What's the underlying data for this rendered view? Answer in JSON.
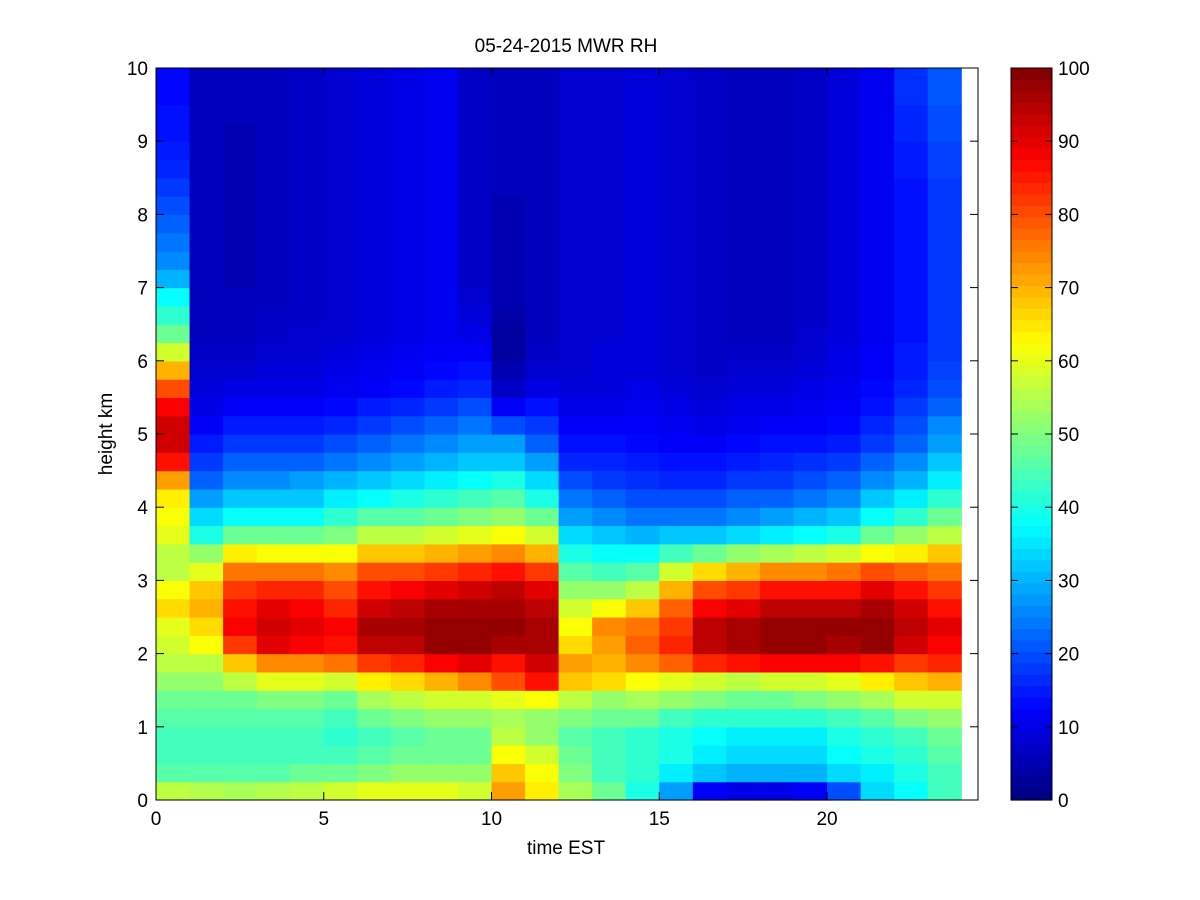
{
  "chart_data": {
    "type": "heatmap",
    "title": "05-24-2015 MWR RH",
    "xlabel": "time EST",
    "ylabel": "height km",
    "xlim": [
      0,
      24.5
    ],
    "ylim": [
      0,
      10
    ],
    "x_ticks": [
      0,
      5,
      10,
      15,
      20
    ],
    "y_ticks": [
      0,
      1,
      2,
      3,
      4,
      5,
      6,
      7,
      8,
      9,
      10
    ],
    "colorbar": {
      "min": 0,
      "max": 100,
      "ticks": [
        0,
        10,
        20,
        30,
        40,
        50,
        60,
        70,
        80,
        90,
        100
      ],
      "colormap": "jet"
    },
    "x": [
      0.5,
      1.5,
      2.5,
      3.5,
      4.5,
      5.5,
      6.5,
      7.5,
      8.5,
      9.5,
      10.5,
      11.5,
      12.5,
      13.5,
      14.5,
      15.5,
      16.5,
      17.5,
      18.5,
      19.5,
      20.5,
      21.5,
      22.5,
      23.5
    ],
    "heights": [
      0.0,
      0.25,
      0.5,
      0.75,
      1.0,
      1.25,
      1.5,
      1.75,
      2.0,
      2.25,
      2.5,
      2.75,
      3.0,
      3.25,
      3.5,
      3.75,
      4.0,
      4.25,
      4.5,
      4.75,
      5.0,
      5.25,
      5.5,
      5.75,
      6.0,
      6.25,
      6.5,
      6.75,
      7.0,
      7.25,
      7.5,
      7.75,
      8.0,
      8.25,
      8.5,
      8.75,
      9.0,
      9.25,
      9.5,
      9.75
    ],
    "z": [
      [
        56,
        46,
        44,
        44,
        46,
        48,
        52,
        56,
        58,
        60,
        66,
        62,
        56,
        56,
        60,
        62,
        64,
        72,
        86,
        92,
        92,
        88,
        80,
        70,
        58,
        48,
        42,
        38,
        30,
        26,
        24,
        22,
        20,
        18,
        16,
        15,
        14,
        14,
        13,
        13
      ],
      [
        55,
        46,
        44,
        44,
        46,
        48,
        52,
        56,
        62,
        66,
        70,
        68,
        60,
        52,
        40,
        34,
        28,
        22,
        18,
        15,
        12,
        10,
        9,
        8,
        7,
        6,
        6,
        6,
        6,
        6,
        6,
        6,
        6,
        6,
        6,
        6,
        6,
        6,
        6,
        6
      ],
      [
        54,
        46,
        44,
        44,
        46,
        48,
        56,
        68,
        82,
        88,
        86,
        82,
        76,
        64,
        48,
        38,
        32,
        26,
        22,
        18,
        15,
        12,
        10,
        8,
        7,
        6,
        6,
        6,
        5,
        5,
        5,
        5,
        5,
        5,
        5,
        5,
        5,
        6,
        6,
        6
      ],
      [
        55,
        46,
        44,
        44,
        46,
        50,
        60,
        74,
        90,
        92,
        90,
        84,
        76,
        62,
        48,
        38,
        32,
        26,
        22,
        18,
        15,
        12,
        10,
        9,
        8,
        7,
        7,
        6,
        6,
        6,
        6,
        6,
        6,
        6,
        6,
        6,
        6,
        6,
        6,
        6
      ],
      [
        56,
        48,
        44,
        44,
        46,
        50,
        60,
        74,
        88,
        90,
        88,
        84,
        76,
        62,
        48,
        38,
        32,
        28,
        22,
        18,
        15,
        12,
        10,
        9,
        8,
        8,
        7,
        7,
        7,
        7,
        7,
        7,
        7,
        7,
        7,
        7,
        7,
        7,
        7,
        7
      ],
      [
        58,
        48,
        44,
        42,
        44,
        48,
        58,
        76,
        86,
        88,
        84,
        80,
        74,
        62,
        50,
        42,
        36,
        30,
        24,
        20,
        16,
        13,
        11,
        10,
        9,
        8,
        8,
        8,
        8,
        8,
        8,
        8,
        8,
        8,
        8,
        8,
        8,
        8,
        8,
        8
      ],
      [
        60,
        50,
        46,
        44,
        48,
        54,
        64,
        82,
        94,
        96,
        92,
        86,
        80,
        68,
        56,
        46,
        38,
        32,
        26,
        22,
        18,
        15,
        12,
        11,
        10,
        9,
        9,
        9,
        9,
        9,
        9,
        9,
        9,
        9,
        9,
        9,
        9,
        9,
        9,
        9
      ],
      [
        60,
        52,
        48,
        46,
        50,
        56,
        66,
        84,
        94,
        96,
        94,
        88,
        80,
        68,
        56,
        46,
        40,
        34,
        28,
        24,
        20,
        16,
        13,
        12,
        11,
        10,
        10,
        10,
        10,
        10,
        10,
        10,
        10,
        10,
        10,
        10,
        10,
        10,
        10,
        10
      ],
      [
        60,
        52,
        48,
        48,
        52,
        58,
        70,
        88,
        98,
        98,
        96,
        90,
        82,
        70,
        58,
        48,
        42,
        36,
        30,
        26,
        22,
        18,
        15,
        13,
        12,
        11,
        11,
        11,
        11,
        11,
        11,
        11,
        11,
        11,
        11,
        11,
        11,
        11,
        11,
        11
      ],
      [
        58,
        52,
        48,
        48,
        52,
        58,
        74,
        90,
        98,
        98,
        96,
        92,
        84,
        72,
        60,
        50,
        44,
        38,
        32,
        28,
        24,
        20,
        16,
        14,
        12,
        10,
        9,
        8,
        7,
        7,
        7,
        7,
        7,
        7,
        7,
        7,
        7,
        7,
        7,
        7
      ],
      [
        72,
        68,
        62,
        56,
        54,
        60,
        80,
        86,
        96,
        98,
        96,
        94,
        86,
        74,
        62,
        52,
        46,
        40,
        32,
        28,
        20,
        12,
        7,
        5,
        3,
        3,
        4,
        5,
        5,
        5,
        5,
        5,
        5,
        6,
        6,
        6,
        6,
        6,
        6,
        6
      ],
      [
        64,
        62,
        58,
        52,
        52,
        62,
        86,
        92,
        96,
        96,
        94,
        90,
        82,
        70,
        58,
        48,
        40,
        34,
        28,
        22,
        18,
        14,
        10,
        8,
        7,
        6,
        6,
        6,
        6,
        6,
        6,
        6,
        6,
        6,
        6,
        6,
        6,
        6,
        6,
        6
      ],
      [
        54,
        50,
        48,
        46,
        50,
        56,
        68,
        72,
        66,
        62,
        58,
        52,
        46,
        40,
        34,
        28,
        24,
        20,
        16,
        14,
        12,
        10,
        9,
        8,
        8,
        8,
        8,
        8,
        8,
        8,
        8,
        8,
        8,
        8,
        8,
        8,
        8,
        8,
        8,
        8
      ],
      [
        48,
        44,
        44,
        44,
        48,
        52,
        66,
        70,
        72,
        74,
        62,
        52,
        44,
        38,
        32,
        26,
        22,
        18,
        16,
        14,
        12,
        10,
        9,
        9,
        9,
        8,
        8,
        8,
        8,
        8,
        8,
        8,
        8,
        8,
        8,
        8,
        8,
        8,
        8,
        8
      ],
      [
        40,
        42,
        42,
        42,
        48,
        54,
        62,
        74,
        78,
        76,
        68,
        56,
        46,
        38,
        30,
        24,
        20,
        17,
        15,
        13,
        12,
        11,
        10,
        9,
        9,
        9,
        9,
        9,
        9,
        9,
        9,
        9,
        9,
        9,
        9,
        9,
        9,
        9,
        9,
        9
      ],
      [
        28,
        36,
        40,
        40,
        44,
        52,
        60,
        78,
        84,
        82,
        78,
        70,
        58,
        44,
        32,
        24,
        20,
        16,
        14,
        12,
        11,
        10,
        9,
        8,
        8,
        8,
        8,
        8,
        8,
        8,
        8,
        8,
        8,
        8,
        8,
        8,
        8,
        8,
        8,
        8
      ],
      [
        12,
        32,
        36,
        38,
        42,
        50,
        58,
        84,
        94,
        94,
        88,
        80,
        66,
        48,
        32,
        24,
        20,
        16,
        14,
        12,
        10,
        9,
        8,
        7,
        7,
        7,
        7,
        7,
        7,
        7,
        7,
        7,
        7,
        7,
        7,
        7,
        7,
        7,
        7,
        7
      ],
      [
        10,
        30,
        34,
        36,
        42,
        48,
        56,
        86,
        96,
        96,
        90,
        82,
        70,
        52,
        34,
        26,
        22,
        18,
        15,
        13,
        11,
        10,
        9,
        8,
        7,
        6,
        6,
        6,
        6,
        6,
        6,
        6,
        6,
        6,
        6,
        6,
        6,
        6,
        6,
        6
      ],
      [
        10,
        30,
        34,
        36,
        42,
        48,
        58,
        88,
        98,
        98,
        94,
        86,
        74,
        54,
        36,
        28,
        22,
        18,
        16,
        14,
        12,
        10,
        9,
        8,
        7,
        6,
        6,
        6,
        6,
        6,
        6,
        6,
        6,
        6,
        6,
        6,
        6,
        6,
        6,
        6
      ],
      [
        12,
        30,
        34,
        36,
        42,
        50,
        58,
        88,
        98,
        98,
        94,
        86,
        74,
        56,
        38,
        30,
        24,
        20,
        17,
        14,
        12,
        11,
        10,
        9,
        8,
        8,
        7,
        7,
        7,
        7,
        7,
        7,
        7,
        7,
        7,
        7,
        7,
        7,
        7,
        7
      ],
      [
        20,
        34,
        38,
        40,
        44,
        52,
        60,
        88,
        96,
        98,
        94,
        86,
        76,
        58,
        40,
        32,
        26,
        22,
        18,
        15,
        13,
        12,
        11,
        10,
        10,
        9,
        9,
        9,
        9,
        9,
        9,
        9,
        9,
        9,
        9,
        9,
        9,
        9,
        9,
        9
      ],
      [
        34,
        36,
        40,
        42,
        46,
        54,
        64,
        86,
        98,
        98,
        96,
        90,
        80,
        62,
        48,
        38,
        32,
        26,
        22,
        18,
        16,
        14,
        13,
        12,
        12,
        11,
        11,
        11,
        11,
        11,
        11,
        11,
        11,
        11,
        11,
        11,
        11,
        11,
        11,
        11
      ],
      [
        38,
        40,
        42,
        44,
        50,
        58,
        68,
        82,
        92,
        94,
        92,
        86,
        78,
        64,
        52,
        42,
        36,
        30,
        26,
        22,
        20,
        18,
        16,
        15,
        15,
        14,
        14,
        14,
        14,
        14,
        14,
        14,
        14,
        14,
        15,
        15,
        16,
        16,
        17,
        17
      ],
      [
        44,
        44,
        46,
        48,
        52,
        58,
        70,
        84,
        88,
        90,
        86,
        82,
        76,
        68,
        56,
        48,
        42,
        36,
        32,
        28,
        26,
        22,
        20,
        19,
        18,
        18,
        18,
        18,
        18,
        18,
        18,
        18,
        18,
        18,
        19,
        19,
        20,
        20,
        21,
        21
      ]
    ]
  }
}
